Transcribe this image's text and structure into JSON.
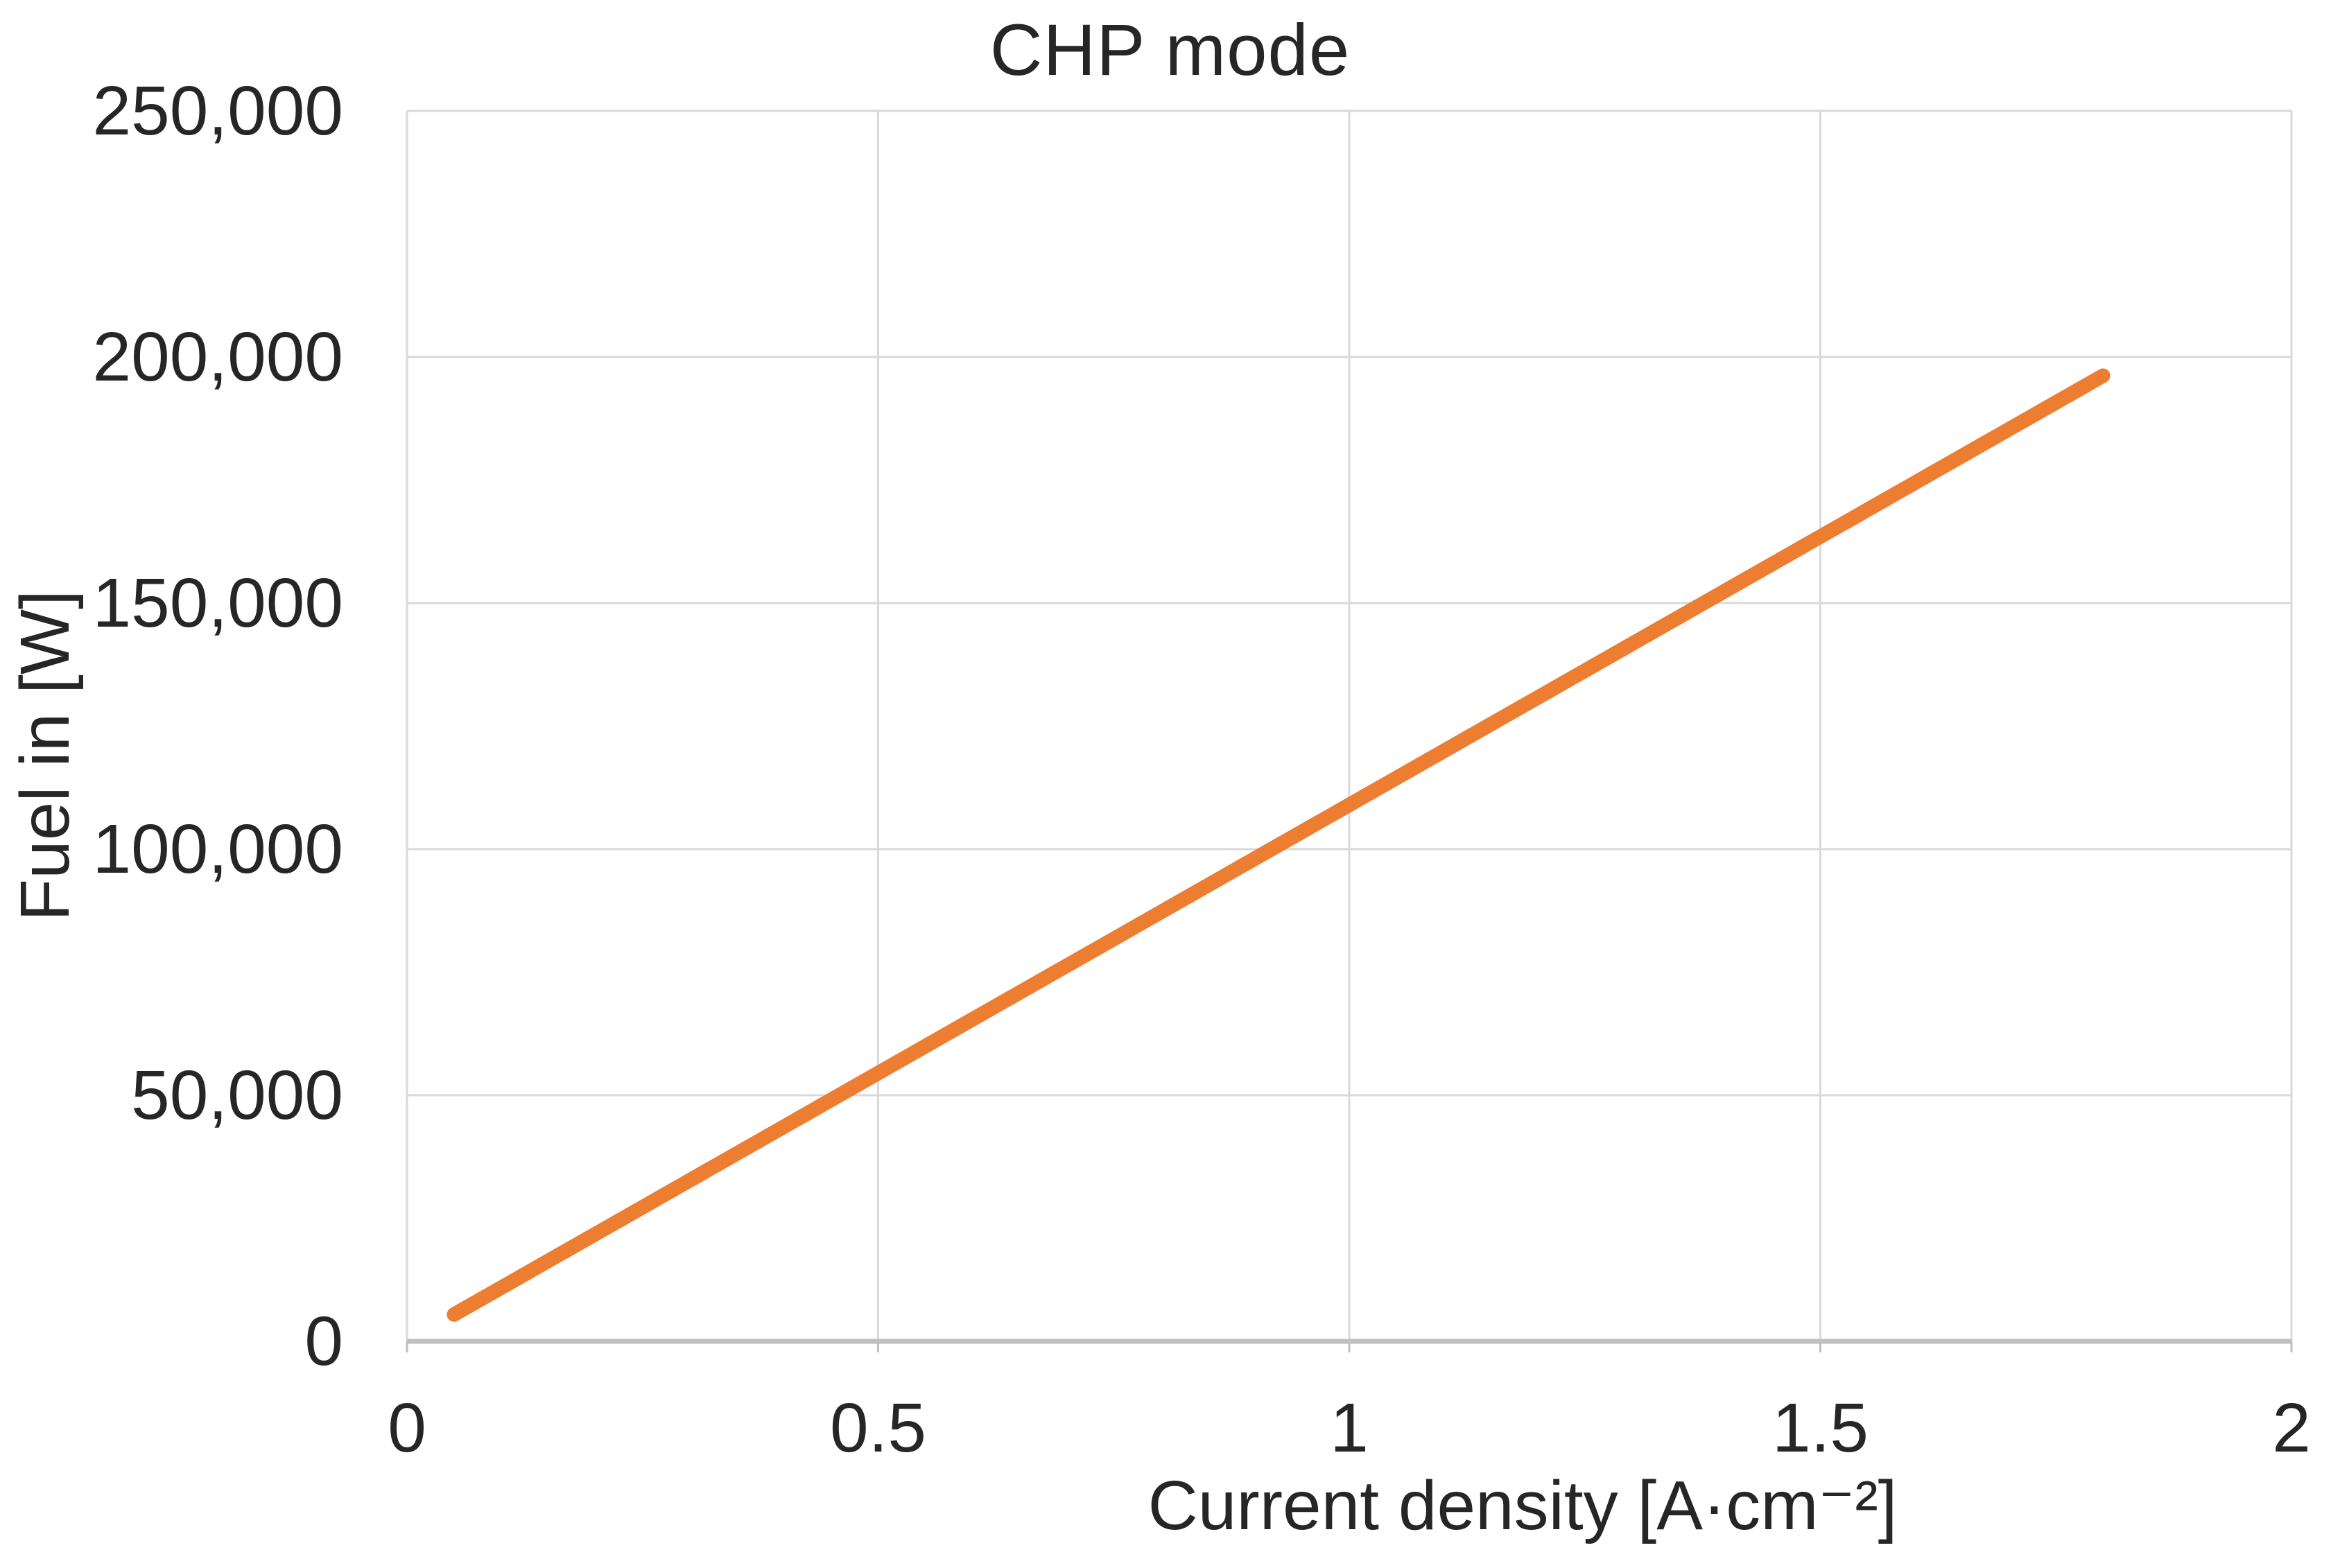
{
  "chart_data": {
    "type": "line",
    "title": "CHP mode",
    "xlabel": "Current density [A·cm⁻²]",
    "ylabel": "Fuel in [W]",
    "xlim": [
      0,
      2
    ],
    "ylim": [
      0,
      250000
    ],
    "grid": true,
    "legend": false,
    "x_ticks": {
      "values": [
        0,
        0.5,
        1,
        1.5,
        2
      ],
      "labels": [
        "0",
        "0.5",
        "1",
        "1.5",
        "2"
      ]
    },
    "y_ticks": {
      "values": [
        0,
        50000,
        100000,
        150000,
        200000,
        250000
      ],
      "labels": [
        "0",
        "50,000",
        "100,000",
        "150,000",
        "200,000",
        "250,000"
      ]
    },
    "series": [
      {
        "name": "Fuel in",
        "color": "#ED7D31",
        "line_width": 21,
        "points": [
          [
            0.05,
            5450
          ],
          [
            0.2,
            21800
          ],
          [
            0.4,
            43600
          ],
          [
            0.6,
            65400
          ],
          [
            0.8,
            87200
          ],
          [
            1.0,
            109000
          ],
          [
            1.2,
            130800
          ],
          [
            1.4,
            152600
          ],
          [
            1.6,
            174400
          ],
          [
            1.8,
            196200
          ]
        ]
      }
    ]
  },
  "colors": {
    "background": "#FFFFFF",
    "gridline": "#D9D9D9",
    "plot_border": "#D9D9D9",
    "axis_line": "#BFBFBF",
    "text": "#262626",
    "series_orange": "#ED7D31"
  }
}
